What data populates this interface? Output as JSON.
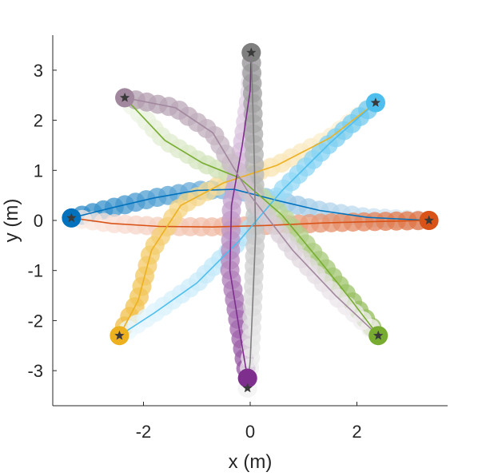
{
  "chart_data": {
    "type": "scatter",
    "xlabel": "x (m)",
    "ylabel": "y (m)",
    "xlim": [
      -3.7,
      3.7
    ],
    "ylim": [
      -3.7,
      3.7
    ],
    "xticks": [
      -2,
      0,
      2
    ],
    "xtick_labels": [
      "-2",
      "0",
      "2"
    ],
    "yticks": [
      -3,
      -2,
      -1,
      0,
      1,
      2,
      3
    ],
    "ytick_labels": [
      "-3",
      "-2",
      "-1",
      "0",
      "1",
      "2",
      "3"
    ],
    "grid": false,
    "series": [
      {
        "color": "#0072BD",
        "start": [
          -3.35,
          0.05
        ],
        "path": [
          [
            -3.35,
            0.05
          ],
          [
            -2.6,
            0.25
          ],
          [
            -1.8,
            0.45
          ],
          [
            -1.0,
            0.6
          ],
          [
            -0.3,
            0.62
          ],
          [
            0.5,
            0.4
          ],
          [
            1.3,
            0.2
          ],
          [
            2.2,
            0.06
          ],
          [
            3.35,
            0.0
          ]
        ]
      },
      {
        "color": "#D95319",
        "start": [
          3.35,
          0.0
        ],
        "path": [
          [
            3.35,
            0.0
          ],
          [
            2.4,
            -0.02
          ],
          [
            1.4,
            -0.05
          ],
          [
            0.3,
            -0.1
          ],
          [
            -0.7,
            -0.13
          ],
          [
            -1.7,
            -0.12
          ],
          [
            -2.6,
            -0.06
          ],
          [
            -3.35,
            0.05
          ]
        ]
      },
      {
        "color": "#EDB120",
        "start": [
          -2.45,
          -2.3
        ],
        "path": [
          [
            -2.45,
            -2.3
          ],
          [
            -2.1,
            -1.6
          ],
          [
            -1.85,
            -0.6
          ],
          [
            -1.3,
            0.3
          ],
          [
            -0.5,
            0.75
          ],
          [
            0.5,
            1.1
          ],
          [
            1.5,
            1.65
          ],
          [
            2.35,
            2.35
          ]
        ]
      },
      {
        "color": "#4DBEEE",
        "start": [
          2.35,
          2.35
        ],
        "path": [
          [
            2.35,
            2.35
          ],
          [
            1.5,
            1.55
          ],
          [
            0.6,
            0.6
          ],
          [
            -0.2,
            -0.4
          ],
          [
            -1.0,
            -1.25
          ],
          [
            -1.8,
            -1.85
          ],
          [
            -2.45,
            -2.3
          ]
        ]
      },
      {
        "color": "#77AC30",
        "start": [
          2.4,
          -2.3
        ],
        "path": [
          [
            2.4,
            -2.3
          ],
          [
            1.9,
            -1.6
          ],
          [
            1.3,
            -0.8
          ],
          [
            0.6,
            0.1
          ],
          [
            -0.2,
            0.85
          ],
          [
            -0.9,
            1.15
          ],
          [
            -1.6,
            1.6
          ],
          [
            -2.35,
            2.45
          ]
        ]
      },
      {
        "color": "#7E2F8E",
        "start": [
          -0.05,
          -3.15
        ],
        "path": [
          [
            -0.05,
            -3.15
          ],
          [
            -0.2,
            -2.2
          ],
          [
            -0.38,
            -1.0
          ],
          [
            -0.35,
            0.3
          ],
          [
            -0.15,
            1.5
          ],
          [
            0.0,
            2.6
          ],
          [
            0.02,
            3.35
          ]
        ]
      },
      {
        "color": "#7F7F7F",
        "start": [
          0.02,
          3.35
        ],
        "path": [
          [
            0.02,
            3.35
          ],
          [
            0.05,
            2.3
          ],
          [
            0.08,
            1.1
          ],
          [
            0.1,
            -0.3
          ],
          [
            0.05,
            -1.6
          ],
          [
            0.0,
            -2.8
          ],
          [
            -0.05,
            -3.35
          ]
        ]
      },
      {
        "color": "#A2889E",
        "start": [
          -2.35,
          2.45
        ],
        "path": [
          [
            -2.35,
            2.45
          ],
          [
            -1.4,
            2.25
          ],
          [
            -0.7,
            1.75
          ],
          [
            0.0,
            0.5
          ],
          [
            0.8,
            -0.6
          ],
          [
            1.6,
            -1.5
          ],
          [
            2.4,
            -2.3
          ]
        ]
      }
    ]
  }
}
